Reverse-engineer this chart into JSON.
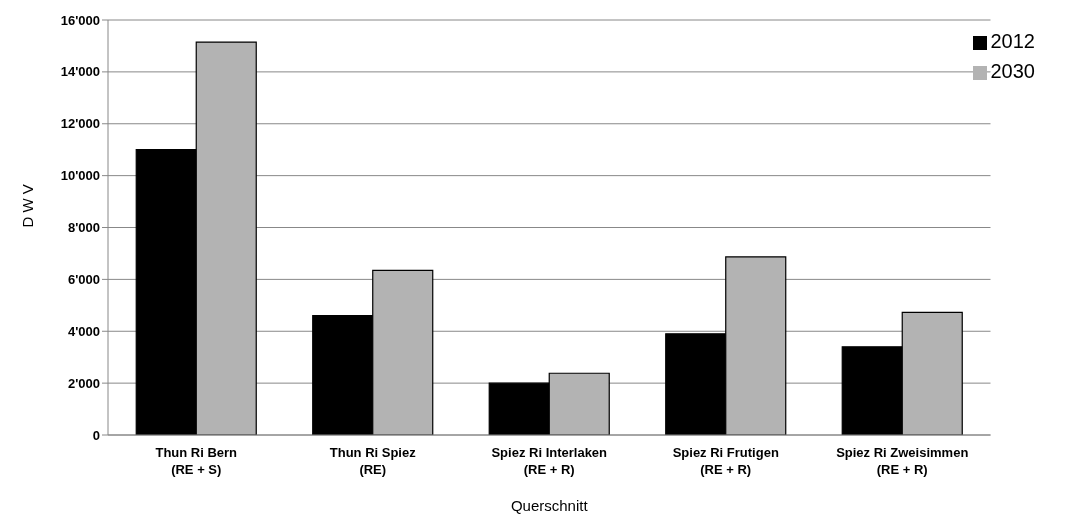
{
  "chart_data": {
    "type": "bar",
    "xlabel": "Querschnitt",
    "ylabel": "D W V",
    "categories": [
      "Thun Ri Bern\n(RE + S)",
      "Thun Ri Spiez\n(RE)",
      "Spiez Ri Interlaken\n(RE + R)",
      "Spiez Ri Frutigen\n(RE + R)",
      "Spiez Ri Zweisimmen\n(RE + R)"
    ],
    "series": [
      {
        "name": "2012",
        "color": "#000000",
        "values": [
          11000,
          4600,
          2000,
          3900,
          3400
        ]
      },
      {
        "name": "2030",
        "color": "#b3b3b3",
        "values": [
          15150,
          6350,
          2380,
          6870,
          4730
        ]
      }
    ],
    "ylim": [
      0,
      16000
    ],
    "yticks": [
      {
        "value": 0,
        "label": "0"
      },
      {
        "value": 2000,
        "label": "2'000"
      },
      {
        "value": 4000,
        "label": "4'000"
      },
      {
        "value": 6000,
        "label": "6'000"
      },
      {
        "value": 8000,
        "label": "8'000"
      },
      {
        "value": 10000,
        "label": "10'000"
      },
      {
        "value": 12000,
        "label": "12'000"
      },
      {
        "value": 14000,
        "label": "14'000"
      },
      {
        "value": 16000,
        "label": "16'000"
      }
    ],
    "grid": "y",
    "legend": "top right"
  }
}
